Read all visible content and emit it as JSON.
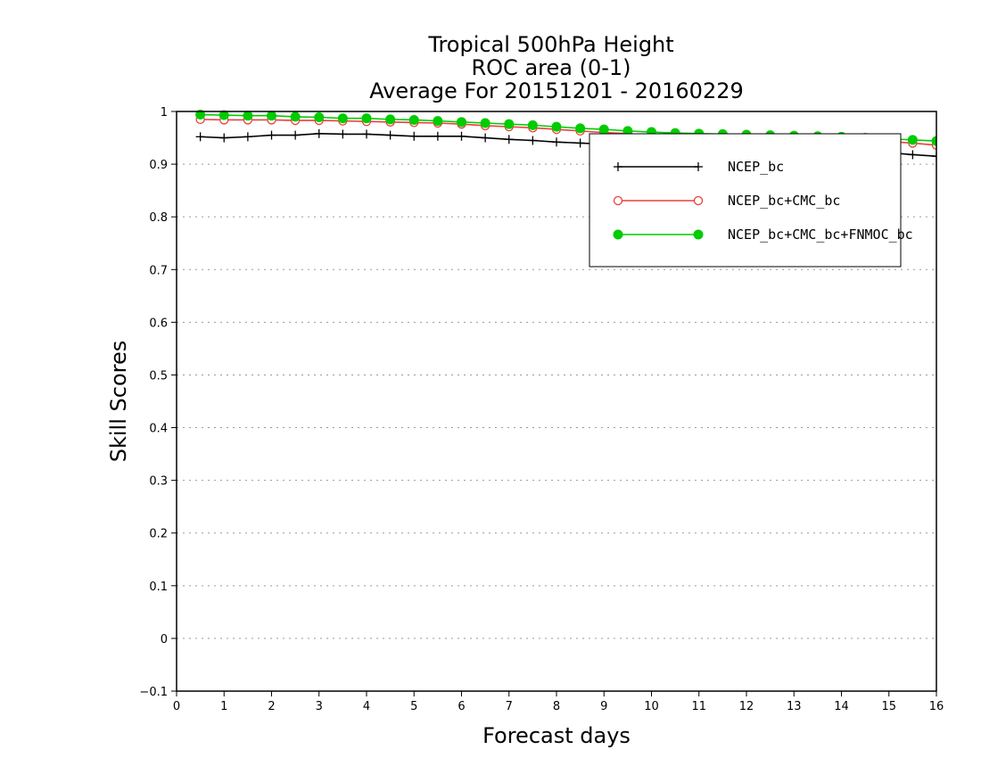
{
  "chart_data": {
    "type": "line",
    "title": [
      "Tropical 500hPa Height",
      "ROC area (0-1)",
      "Average For 20151201 - 20160229"
    ],
    "xlabel": "Forecast days",
    "ylabel": "Skill Scores",
    "xlim": [
      0,
      16
    ],
    "ylim": [
      -0.1,
      1
    ],
    "xticks": [
      "0",
      "1",
      "2",
      "3",
      "4",
      "5",
      "6",
      "7",
      "8",
      "9",
      "10",
      "11",
      "12",
      "13",
      "14",
      "15",
      "16"
    ],
    "yticks": [
      "−0.1",
      "0",
      "0.1",
      "0.2",
      "0.3",
      "0.4",
      "0.5",
      "0.6",
      "0.7",
      "0.8",
      "0.9",
      "1"
    ],
    "grid": "horizontal dotted",
    "legend_position": "top-right",
    "x": [
      0.5,
      1,
      1.5,
      2,
      2.5,
      3,
      3.5,
      4,
      4.5,
      5,
      5.5,
      6,
      6.5,
      7,
      7.5,
      8,
      8.5,
      9,
      9.5,
      10,
      10.5,
      11,
      11.5,
      12,
      12.5,
      13,
      13.5,
      14,
      14.5,
      15,
      15.5,
      16
    ],
    "series": [
      {
        "name": "NCEP_bc",
        "color": "#000000",
        "marker": "plus",
        "values": [
          0.952,
          0.95,
          0.952,
          0.955,
          0.955,
          0.958,
          0.957,
          0.957,
          0.955,
          0.953,
          0.953,
          0.953,
          0.95,
          0.947,
          0.945,
          0.942,
          0.94,
          0.938,
          0.936,
          0.934,
          0.933,
          0.932,
          0.931,
          0.93,
          0.929,
          0.928,
          0.927,
          0.926,
          0.924,
          0.922,
          0.918,
          0.915
        ]
      },
      {
        "name": "NCEP_bc+CMC_bc",
        "color": "#e8403c",
        "marker": "open-circle",
        "values": [
          0.985,
          0.984,
          0.984,
          0.984,
          0.983,
          0.983,
          0.982,
          0.981,
          0.98,
          0.979,
          0.978,
          0.976,
          0.973,
          0.971,
          0.969,
          0.966,
          0.963,
          0.96,
          0.958,
          0.955,
          0.953,
          0.952,
          0.951,
          0.95,
          0.95,
          0.949,
          0.948,
          0.947,
          0.945,
          0.943,
          0.94,
          0.936
        ]
      },
      {
        "name": "NCEP_bc+CMC_bc+FNMOC_bc",
        "color": "#00cc00",
        "marker": "filled-circle",
        "values": [
          0.994,
          0.993,
          0.992,
          0.992,
          0.99,
          0.989,
          0.987,
          0.987,
          0.985,
          0.984,
          0.982,
          0.98,
          0.978,
          0.976,
          0.974,
          0.971,
          0.968,
          0.966,
          0.963,
          0.961,
          0.959,
          0.958,
          0.957,
          0.956,
          0.955,
          0.954,
          0.953,
          0.952,
          0.95,
          0.948,
          0.946,
          0.944
        ]
      }
    ]
  }
}
